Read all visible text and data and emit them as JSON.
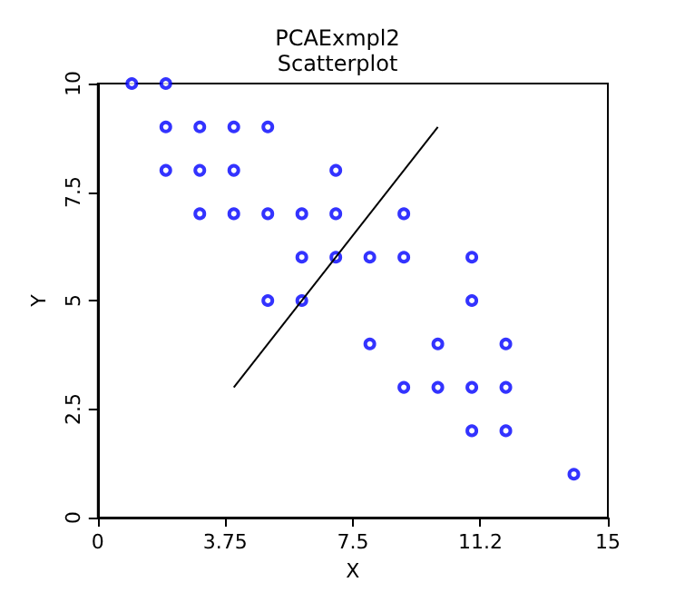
{
  "chart_data": {
    "type": "scatter",
    "title": "PCAExmpl2",
    "subtitle": "Scatterplot",
    "xlabel": "X",
    "ylabel": "Y",
    "xlim": [
      0,
      15
    ],
    "ylim": [
      0,
      10
    ],
    "xticks": [
      0,
      3.75,
      7.5,
      {
        "value": 11.25,
        "label": "11.2"
      },
      15
    ],
    "yticks": [
      0,
      2.5,
      5,
      7.5,
      10
    ],
    "grid": false,
    "marker": "circle",
    "series": [
      {
        "color": "#0000ff",
        "x": [
          1,
          2,
          2,
          3,
          4,
          5,
          2,
          3,
          4,
          7,
          3,
          4,
          5,
          6,
          7,
          9,
          6,
          7,
          8,
          9,
          11,
          5,
          6,
          11,
          8,
          10,
          12,
          9,
          10,
          11,
          12,
          11,
          12,
          14
        ],
        "values": [
          10,
          10,
          9,
          9,
          9,
          9,
          8,
          8,
          8,
          8,
          7,
          7,
          7,
          7,
          7,
          7,
          6,
          6,
          6,
          6,
          6,
          5,
          5,
          5,
          4,
          4,
          4,
          3,
          3,
          3,
          3,
          2,
          2,
          1
        ]
      },
      {
        "type": "line",
        "color": "#000000",
        "x": [
          4,
          10
        ],
        "values": [
          3,
          9
        ],
        "marker": "none",
        "line_style": "solid"
      }
    ]
  }
}
